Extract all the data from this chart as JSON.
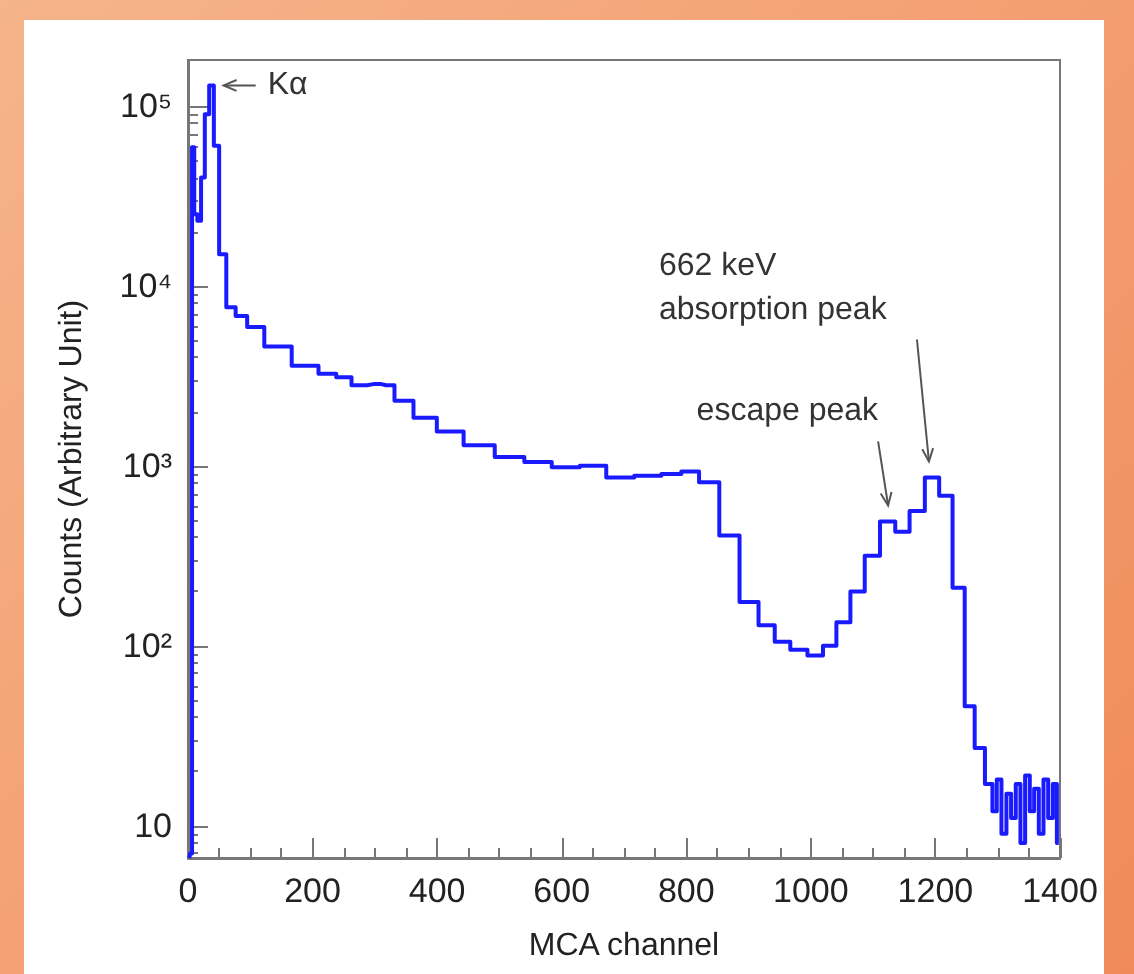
{
  "chart_data": {
    "type": "step",
    "xlabel": "MCA channel",
    "ylabel": "Counts (Arbitrary Unit)",
    "log": "y",
    "grid": false,
    "marker": "none",
    "xlim": [
      0,
      1400
    ],
    "xticks": [
      0,
      200,
      400,
      600,
      800,
      1000,
      1200,
      1400
    ],
    "ylim": [
      6.6,
      180000
    ],
    "yticks": [
      10,
      {
        "value": 100,
        "label": "10²"
      },
      {
        "value": 1000,
        "label": "10³"
      },
      {
        "value": 10000,
        "label": "10⁴"
      },
      {
        "value": 100000,
        "label": "10⁵"
      }
    ],
    "annotations": [
      {
        "text": "Kα",
        "x": 38,
        "y": 130000
      },
      {
        "text": "escape peak",
        "x": 1124,
        "y": 490
      },
      {
        "text": "662 keV\nabsorption peak",
        "x": 1196,
        "y": 860
      }
    ],
    "series": [
      {
        "color": "#1a1aff",
        "x": [
          2,
          5,
          8,
          12,
          18,
          24,
          30,
          38,
          45,
          55,
          68,
          85,
          105,
          140,
          193,
          226,
          250,
          275,
          300,
          318,
          345,
          379,
          420,
          465,
          520,
          560,
          608,
          650,
          693,
          740,
          780,
          804,
          837,
          869,
          902,
          930,
          954,
          980,
          1009,
          1030,
          1052,
          1075,
          1098,
          1124,
          1147,
          1170,
          1196,
          1216,
          1239,
          1255,
          1271,
          1288,
          1295,
          1302,
          1310,
          1318,
          1325,
          1333,
          1340,
          1348,
          1355,
          1362,
          1370,
          1377,
          1385,
          1392,
          1398
        ],
        "values": [
          6.6,
          7,
          59000,
          25000,
          23000,
          40000,
          90000,
          130000,
          60000,
          15000,
          7600,
          6800,
          5900,
          4600,
          3600,
          3250,
          3100,
          2800,
          2850,
          2800,
          2300,
          1850,
          1550,
          1300,
          1120,
          1050,
          980,
          1000,
          860,
          880,
          900,
          930,
          810,
          410,
          175,
          130,
          105,
          95,
          88,
          100,
          135,
          200,
          316,
          490,
          430,
          560,
          860,
          680,
          210,
          46,
          27,
          17,
          12,
          18,
          9,
          15,
          11,
          17,
          8,
          19,
          12,
          16,
          9,
          18,
          11,
          17,
          8
        ]
      }
    ]
  }
}
